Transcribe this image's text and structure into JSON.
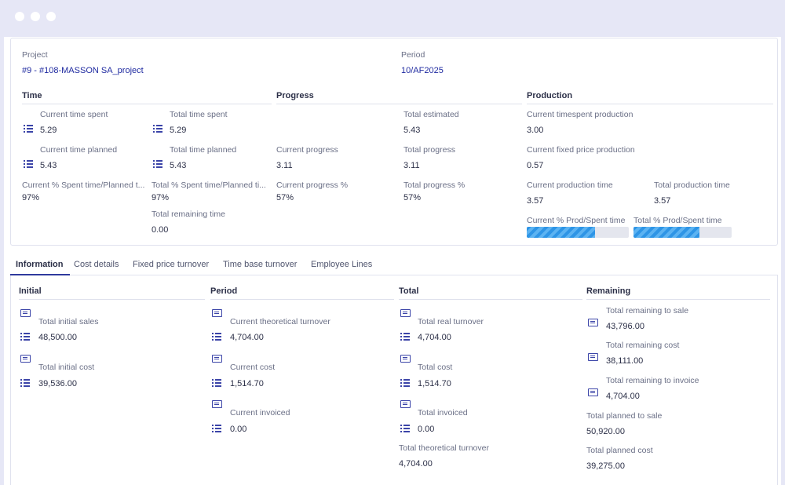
{
  "header": {
    "project_label": "Project",
    "project_value": "#9 - #108-MASSON SA_project",
    "period_label": "Period",
    "period_value": "10/AF2025"
  },
  "time": {
    "title": "Time",
    "current_time_spent_label": "Current time spent",
    "current_time_spent": "5.29",
    "total_time_spent_label": "Total time spent",
    "total_time_spent": "5.29",
    "current_time_planned_label": "Current time planned",
    "current_time_planned": "5.43",
    "total_time_planned_label": "Total time planned",
    "total_time_planned": "5.43",
    "current_pct_label": "Current % Spent time/Planned t...",
    "current_pct": "97%",
    "total_pct_label": "Total % Spent time/Planned ti...",
    "total_pct": "97%",
    "total_remaining_label": "Total remaining time",
    "total_remaining": "0.00"
  },
  "progress": {
    "title": "Progress",
    "total_estimated_label": "Total estimated",
    "total_estimated": "5.43",
    "current_progress_label": "Current progress",
    "current_progress": "3.11",
    "total_progress_label": "Total progress",
    "total_progress": "3.11",
    "current_progress_pct_label": "Current progress %",
    "current_progress_pct": "57%",
    "total_progress_pct_label": "Total progress %",
    "total_progress_pct": "57%"
  },
  "production": {
    "title": "Production",
    "current_timespent_label": "Current timespent production",
    "current_timespent": "3.00",
    "current_fixed_label": "Current fixed price production",
    "current_fixed": "0.57",
    "current_prod_time_label": "Current production time",
    "current_prod_time": "3.57",
    "total_prod_time_label": "Total production time",
    "total_prod_time": "3.57",
    "current_ratio_label": "Current % Prod/Spent time",
    "current_ratio_fill": 0.67,
    "total_ratio_label": "Total % Prod/Spent time",
    "total_ratio_fill": 0.67
  },
  "tabs": [
    "Information",
    "Cost details",
    "Fixed price turnover",
    "Time base turnover",
    "Employee Lines"
  ],
  "info": {
    "initial": {
      "title": "Initial",
      "sales_label": "Total initial sales",
      "sales": "48,500.00",
      "cost_label": "Total initial cost",
      "cost": "39,536.00"
    },
    "period": {
      "title": "Period",
      "theoretical_label": "Current theoretical turnover",
      "theoretical": "4,704.00",
      "cost_label": "Current cost",
      "cost": "1,514.70",
      "invoiced_label": "Current invoiced",
      "invoiced": "0.00"
    },
    "total": {
      "title": "Total",
      "real_label": "Total real turnover",
      "real": "4,704.00",
      "cost_label": "Total cost",
      "cost": "1,514.70",
      "invoiced_label": "Total invoiced",
      "invoiced": "0.00",
      "theoretical_label": "Total theoretical turnover",
      "theoretical": "4,704.00"
    },
    "remaining": {
      "title": "Remaining",
      "to_sale_label": "Total remaining to sale",
      "to_sale": "43,796.00",
      "cost_label": "Total remaining cost",
      "cost": "38,111.00",
      "to_invoice_label": "Total remaining to invoice",
      "to_invoice": "4,704.00",
      "planned_sale_label": "Total planned to sale",
      "planned_sale": "50,920.00",
      "planned_cost_label": "Total planned cost",
      "planned_cost": "39,275.00"
    }
  }
}
